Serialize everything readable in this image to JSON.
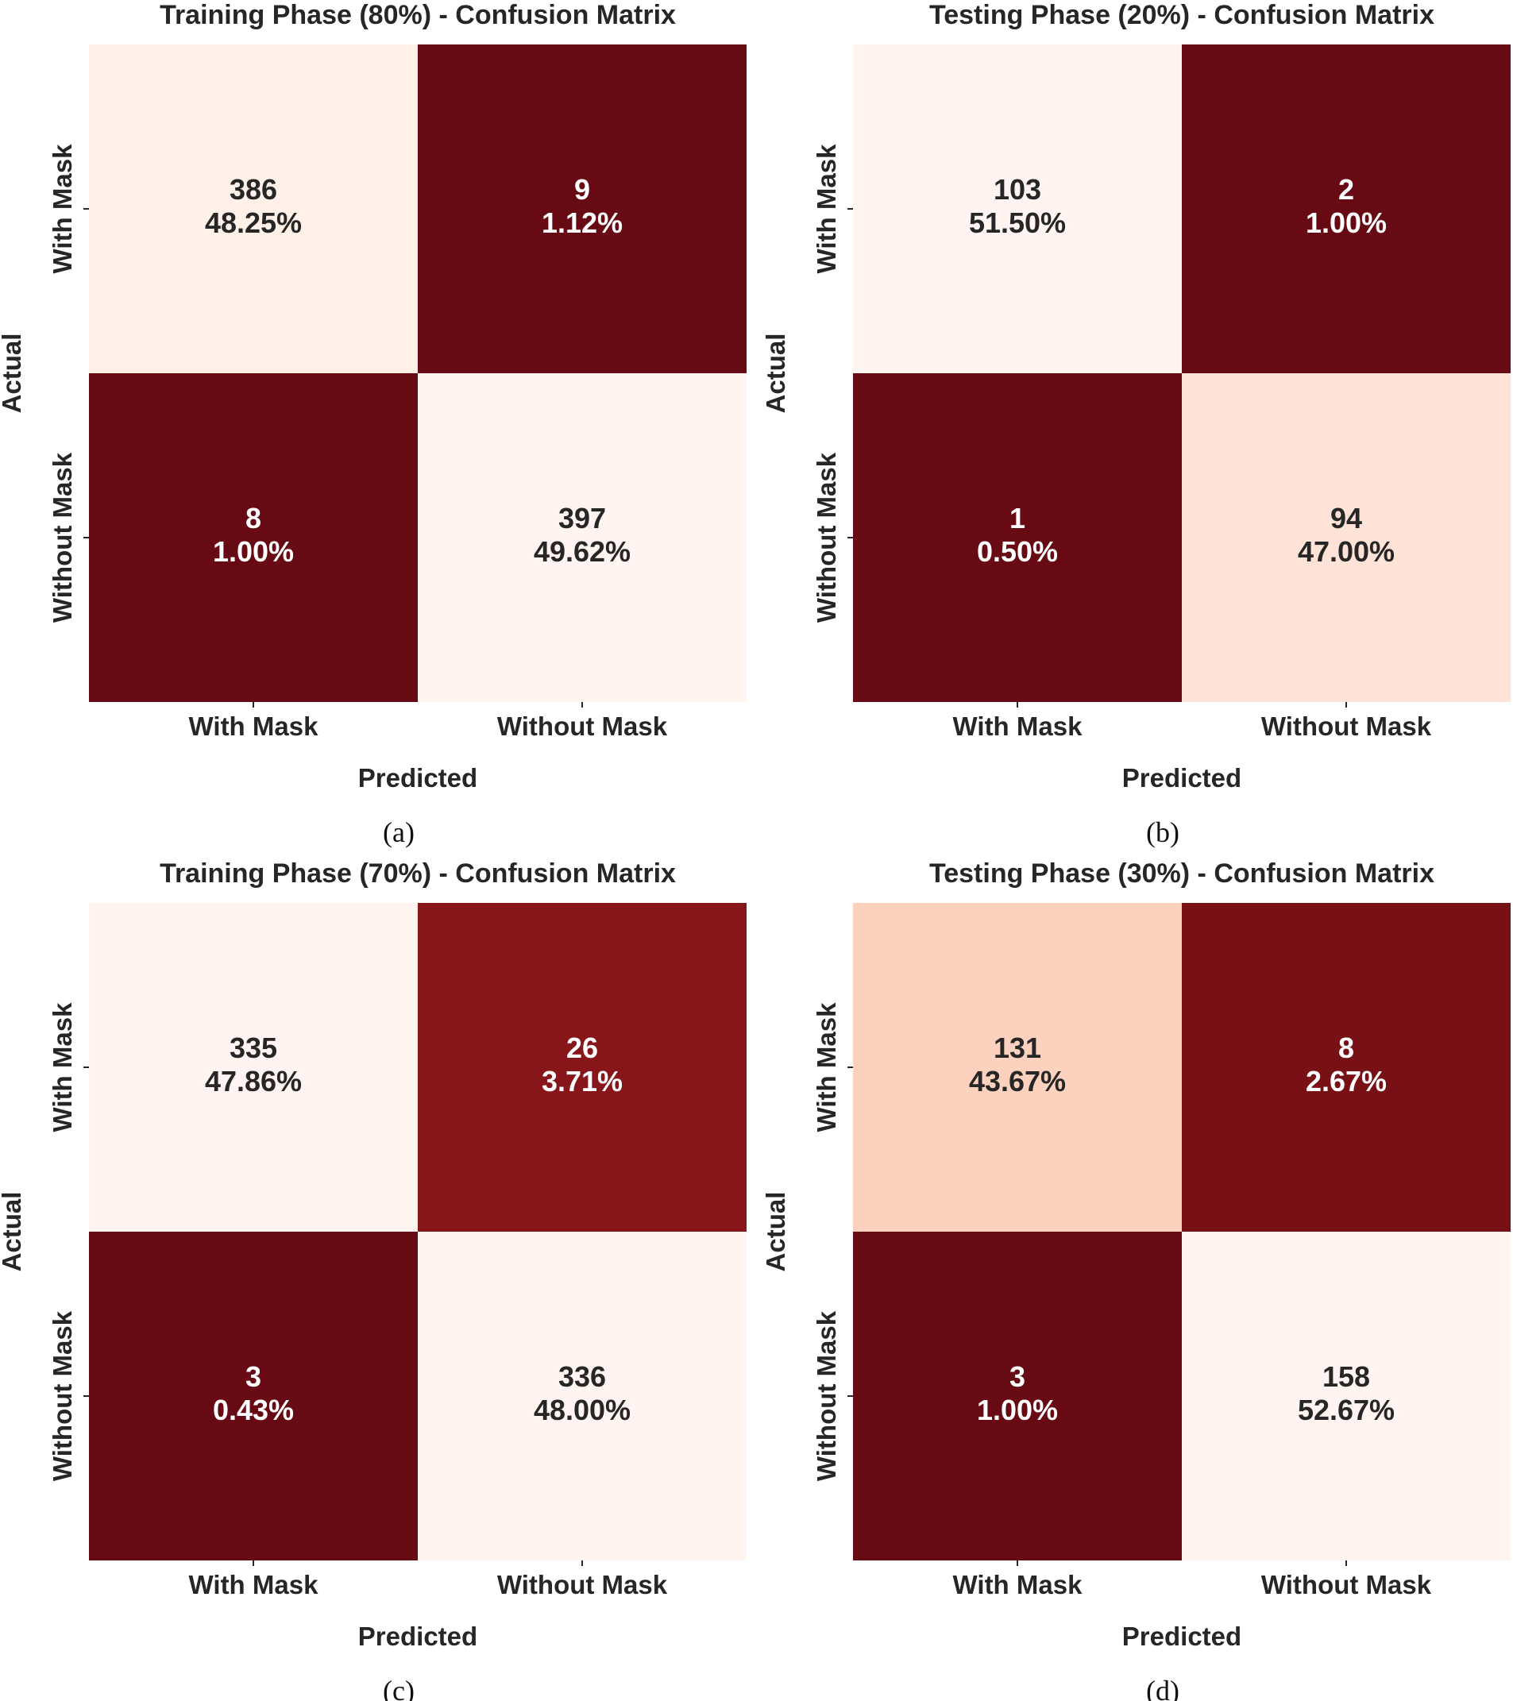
{
  "chart_data": [
    {
      "type": "heatmap",
      "panel_label": "(a)",
      "title": "Training Phase (80%) - Confusion Matrix",
      "xlabel": "Predicted",
      "ylabel": "Actual",
      "x_categories": [
        "With Mask",
        "Without Mask"
      ],
      "y_categories": [
        "With Mask",
        "Without Mask"
      ],
      "cells": [
        {
          "row": 0,
          "col": 0,
          "count": "386",
          "percent": "48.25%",
          "fill": "#fff0e8",
          "text_color": "#262626"
        },
        {
          "row": 0,
          "col": 1,
          "count": "9",
          "percent": "1.12%",
          "fill": "#670a14",
          "text_color": "#ffffff"
        },
        {
          "row": 1,
          "col": 0,
          "count": "8",
          "percent": "1.00%",
          "fill": "#670a14",
          "text_color": "#ffffff"
        },
        {
          "row": 1,
          "col": 1,
          "count": "397",
          "percent": "49.62%",
          "fill": "#fff4ef",
          "text_color": "#262626"
        }
      ]
    },
    {
      "type": "heatmap",
      "panel_label": "(b)",
      "title": "Testing Phase (20%) - Confusion Matrix",
      "xlabel": "Predicted",
      "ylabel": "Actual",
      "x_categories": [
        "With Mask",
        "Without Mask"
      ],
      "y_categories": [
        "With Mask",
        "Without Mask"
      ],
      "cells": [
        {
          "row": 0,
          "col": 0,
          "count": "103",
          "percent": "51.50%",
          "fill": "#fff4ef",
          "text_color": "#262626"
        },
        {
          "row": 0,
          "col": 1,
          "count": "2",
          "percent": "1.00%",
          "fill": "#670a14",
          "text_color": "#ffffff"
        },
        {
          "row": 1,
          "col": 0,
          "count": "1",
          "percent": "0.50%",
          "fill": "#670a14",
          "text_color": "#ffffff"
        },
        {
          "row": 1,
          "col": 1,
          "count": "94",
          "percent": "47.00%",
          "fill": "#fee3d6",
          "text_color": "#262626"
        }
      ]
    },
    {
      "type": "heatmap",
      "panel_label": "(c)",
      "title": "Training Phase (70%) - Confusion Matrix",
      "xlabel": "Predicted",
      "ylabel": "Actual",
      "x_categories": [
        "With Mask",
        "Without Mask"
      ],
      "y_categories": [
        "With Mask",
        "Without Mask"
      ],
      "cells": [
        {
          "row": 0,
          "col": 0,
          "count": "335",
          "percent": "47.86%",
          "fill": "#fff4ef",
          "text_color": "#262626"
        },
        {
          "row": 0,
          "col": 1,
          "count": "26",
          "percent": "3.71%",
          "fill": "#86161a",
          "text_color": "#ffffff"
        },
        {
          "row": 1,
          "col": 0,
          "count": "3",
          "percent": "0.43%",
          "fill": "#670a14",
          "text_color": "#ffffff"
        },
        {
          "row": 1,
          "col": 1,
          "count": "336",
          "percent": "48.00%",
          "fill": "#fff4ef",
          "text_color": "#262626"
        }
      ]
    },
    {
      "type": "heatmap",
      "panel_label": "(d)",
      "title": "Testing Phase (30%) - Confusion Matrix",
      "xlabel": "Predicted",
      "ylabel": "Actual",
      "x_categories": [
        "With Mask",
        "Without Mask"
      ],
      "y_categories": [
        "With Mask",
        "Without Mask"
      ],
      "cells": [
        {
          "row": 0,
          "col": 0,
          "count": "131",
          "percent": "43.67%",
          "fill": "#fcd2bf",
          "text_color": "#262626"
        },
        {
          "row": 0,
          "col": 1,
          "count": "8",
          "percent": "2.67%",
          "fill": "#771116",
          "text_color": "#ffffff"
        },
        {
          "row": 1,
          "col": 0,
          "count": "3",
          "percent": "1.00%",
          "fill": "#670a14",
          "text_color": "#ffffff"
        },
        {
          "row": 1,
          "col": 1,
          "count": "158",
          "percent": "52.67%",
          "fill": "#fff4ef",
          "text_color": "#262626"
        }
      ]
    }
  ]
}
